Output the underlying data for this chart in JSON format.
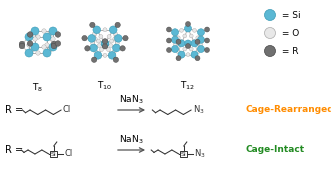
{
  "bg_color": "#ffffff",
  "legend_items": [
    {
      "label": " = Si",
      "color": "#5bb8d4",
      "ec": "#3a9ab5"
    },
    {
      "label": " = O",
      "color": "#e8e8e8",
      "ec": "#aaaaaa"
    },
    {
      "label": " = R",
      "color": "#707070",
      "ec": "#444444"
    }
  ],
  "si_color": "#5bb8d4",
  "si_ec": "#3a9ab5",
  "o_color": "#e8e8e8",
  "o_ec": "#aaaaaa",
  "r_color": "#707070",
  "r_ec": "#444444",
  "bond_color": "#aaaaaa",
  "chain_color": "#333333",
  "rearranged_color": "#FF8C00",
  "intact_color": "#228B22",
  "figsize": [
    3.31,
    1.89
  ],
  "dpi": 100
}
